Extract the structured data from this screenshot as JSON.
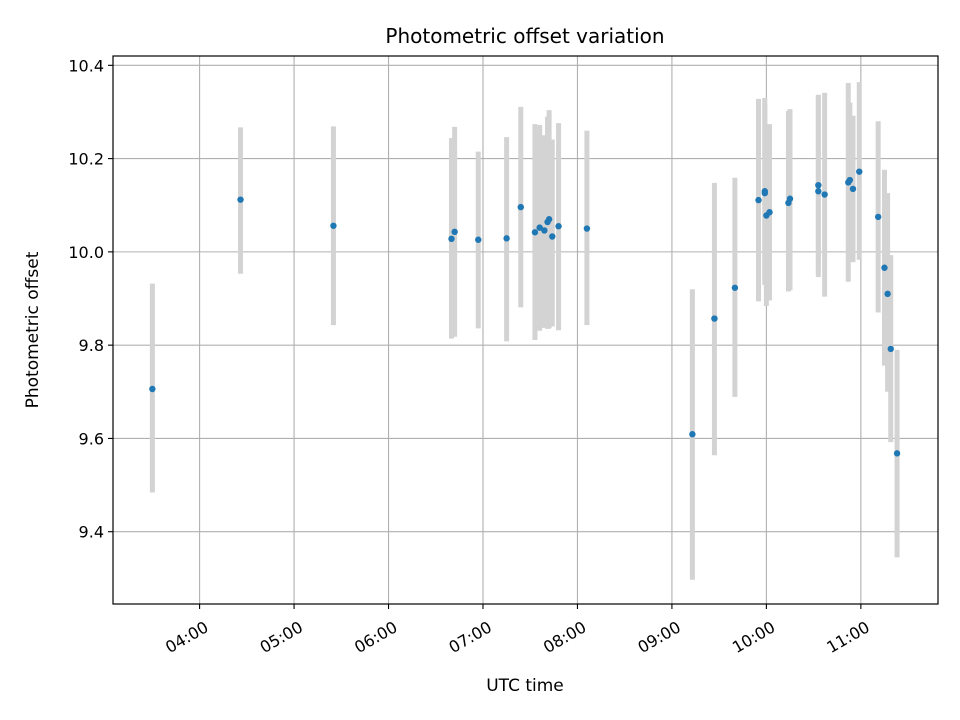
{
  "chart_data": {
    "type": "scatter",
    "title": "Photometric offset variation",
    "xlabel": "UTC time",
    "ylabel": "Photometric offset",
    "x_axis_kind": "time (hours, UTC)",
    "xlim": [
      "03:05",
      "11:49"
    ],
    "ylim": [
      9.245,
      10.42
    ],
    "x_ticks": [
      "04:00",
      "05:00",
      "06:00",
      "07:00",
      "08:00",
      "09:00",
      "10:00",
      "11:00"
    ],
    "y_ticks": [
      "9.4",
      "9.6",
      "9.8",
      "10.0",
      "10.2",
      "10.4"
    ],
    "grid": true,
    "legend": "none",
    "colors": {
      "point": "#1f77b4",
      "errorbar": "#d3d3d3",
      "grid": "#b0b0b0"
    },
    "points": [
      {
        "time": "03:30",
        "y": 9.706,
        "err_low": 9.484,
        "err_high": 9.932
      },
      {
        "time": "04:26",
        "y": 10.112,
        "err_low": 9.953,
        "err_high": 10.267
      },
      {
        "time": "05:25",
        "y": 10.056,
        "err_low": 9.843,
        "err_high": 10.269
      },
      {
        "time": "06:40",
        "y": 10.028,
        "err_low": 9.814,
        "err_high": 10.244
      },
      {
        "time": "06:42",
        "y": 10.043,
        "err_low": 9.818,
        "err_high": 10.268
      },
      {
        "time": "06:57",
        "y": 10.026,
        "err_low": 9.836,
        "err_high": 10.215
      },
      {
        "time": "07:15",
        "y": 10.029,
        "err_low": 9.808,
        "err_high": 10.246
      },
      {
        "time": "07:24",
        "y": 10.096,
        "err_low": 9.881,
        "err_high": 10.311
      },
      {
        "time": "07:33",
        "y": 10.042,
        "err_low": 9.811,
        "err_high": 10.274
      },
      {
        "time": "07:36",
        "y": 10.052,
        "err_low": 9.831,
        "err_high": 10.272
      },
      {
        "time": "07:39",
        "y": 10.046,
        "err_low": 9.837,
        "err_high": 10.25
      },
      {
        "time": "07:41",
        "y": 10.064,
        "err_low": 9.835,
        "err_high": 10.29
      },
      {
        "time": "07:42",
        "y": 10.07,
        "err_low": 9.836,
        "err_high": 10.304
      },
      {
        "time": "07:44",
        "y": 10.033,
        "err_low": 9.84,
        "err_high": 10.241
      },
      {
        "time": "07:48",
        "y": 10.055,
        "err_low": 9.832,
        "err_high": 10.276
      },
      {
        "time": "08:06",
        "y": 10.05,
        "err_low": 9.843,
        "err_high": 10.26
      },
      {
        "time": "09:13",
        "y": 9.609,
        "err_low": 9.297,
        "err_high": 9.92
      },
      {
        "time": "09:27",
        "y": 9.857,
        "err_low": 9.564,
        "err_high": 10.148
      },
      {
        "time": "09:40",
        "y": 9.923,
        "err_low": 9.689,
        "err_high": 10.159
      },
      {
        "time": "09:55",
        "y": 10.111,
        "err_low": 9.894,
        "err_high": 10.328
      },
      {
        "time": "09:59",
        "y": 10.13,
        "err_low": 9.929,
        "err_high": 10.33
      },
      {
        "time": "09:59",
        "y": 10.126,
        "err_low": 9.94,
        "err_high": 10.318
      },
      {
        "time": "10:00",
        "y": 10.078,
        "err_low": 9.884,
        "err_high": 10.274
      },
      {
        "time": "10:02",
        "y": 10.085,
        "err_low": 9.896,
        "err_high": 10.274
      },
      {
        "time": "10:14",
        "y": 10.105,
        "err_low": 9.915,
        "err_high": 10.302
      },
      {
        "time": "10:15",
        "y": 10.114,
        "err_low": 9.918,
        "err_high": 10.306
      },
      {
        "time": "10:33",
        "y": 10.13,
        "err_low": 9.946,
        "err_high": 10.337
      },
      {
        "time": "10:33",
        "y": 10.143,
        "err_low": 9.96,
        "err_high": 10.335
      },
      {
        "time": "10:37",
        "y": 10.123,
        "err_low": 9.904,
        "err_high": 10.341
      },
      {
        "time": "10:52",
        "y": 10.149,
        "err_low": 9.936,
        "err_high": 10.362
      },
      {
        "time": "10:53",
        "y": 10.154,
        "err_low": 9.985,
        "err_high": 10.32
      },
      {
        "time": "10:55",
        "y": 10.135,
        "err_low": 9.978,
        "err_high": 10.292
      },
      {
        "time": "10:59",
        "y": 10.172,
        "err_low": 9.983,
        "err_high": 10.364
      },
      {
        "time": "11:11",
        "y": 10.075,
        "err_low": 9.87,
        "err_high": 10.28
      },
      {
        "time": "11:15",
        "y": 9.966,
        "err_low": 9.756,
        "err_high": 10.176
      },
      {
        "time": "11:17",
        "y": 9.91,
        "err_low": 9.7,
        "err_high": 10.126
      },
      {
        "time": "11:19",
        "y": 9.792,
        "err_low": 9.592,
        "err_high": 9.993
      },
      {
        "time": "11:23",
        "y": 9.568,
        "err_low": 9.345,
        "err_high": 9.79
      }
    ]
  }
}
